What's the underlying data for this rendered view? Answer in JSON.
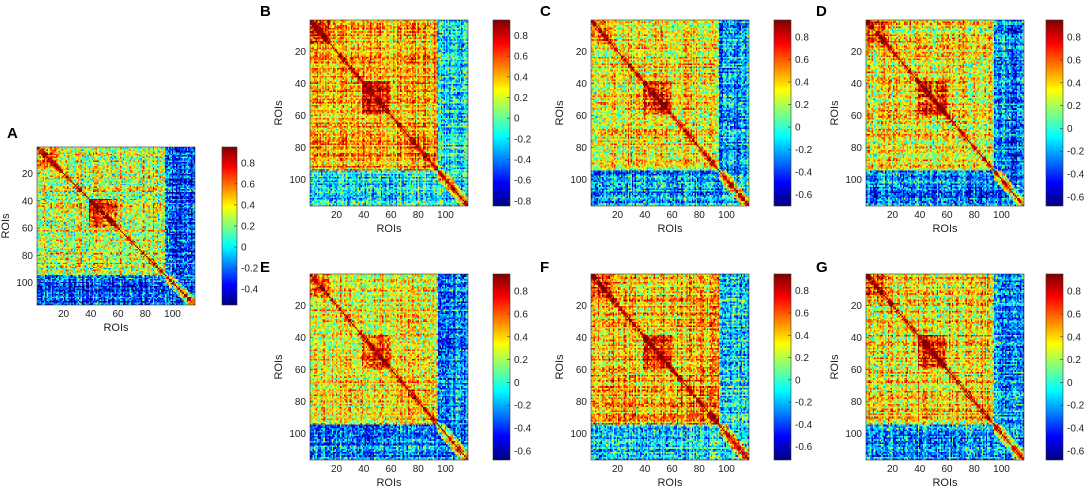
{
  "chart_data": [
    {
      "panel": "A",
      "type": "heatmap",
      "xlabel": "ROIs",
      "ylabel": "ROIs",
      "x_ticks": [
        20,
        40,
        60,
        80,
        100
      ],
      "y_ticks": [
        20,
        40,
        60,
        80,
        100
      ],
      "x_tick_labels": [
        "20",
        "40",
        "60",
        "80",
        "100"
      ],
      "y_tick_labels": [
        "20",
        "40",
        "60",
        "80",
        "100"
      ],
      "n_rois": 116,
      "colorbar": {
        "range": [
          -0.55,
          0.95
        ],
        "ticks": [
          -0.4,
          -0.2,
          0,
          0.2,
          0.4,
          0.6,
          0.8
        ],
        "tick_labels": [
          "-0.4",
          "-0.2",
          "0",
          "0.2",
          "0.4",
          "0.6",
          "0.8"
        ]
      }
    },
    {
      "panel": "B",
      "type": "heatmap",
      "xlabel": "ROIs",
      "ylabel": "ROIs",
      "x_ticks": [
        20,
        40,
        60,
        80,
        100
      ],
      "y_ticks": [
        20,
        40,
        60,
        80,
        100
      ],
      "x_tick_labels": [
        "20",
        "40",
        "60",
        "80",
        "100"
      ],
      "y_tick_labels": [
        "20",
        "40",
        "60",
        "80",
        "100"
      ],
      "n_rois": 116,
      "colorbar": {
        "range": [
          -0.85,
          0.95
        ],
        "ticks": [
          -0.8,
          -0.6,
          -0.4,
          -0.2,
          0,
          0.2,
          0.4,
          0.6,
          0.8
        ],
        "tick_labels": [
          "-0.8",
          "-0.6",
          "-0.4",
          "-0.2",
          "0",
          "0.2",
          "0.4",
          "0.6",
          "0.8"
        ]
      }
    },
    {
      "panel": "C",
      "type": "heatmap",
      "xlabel": "ROIs",
      "ylabel": "ROIs",
      "x_ticks": [
        20,
        40,
        60,
        80,
        100
      ],
      "y_ticks": [
        20,
        40,
        60,
        80,
        100
      ],
      "x_tick_labels": [
        "20",
        "40",
        "60",
        "80",
        "100"
      ],
      "y_tick_labels": [
        "20",
        "40",
        "60",
        "80",
        "100"
      ],
      "n_rois": 116,
      "colorbar": {
        "range": [
          -0.7,
          0.95
        ],
        "ticks": [
          -0.6,
          -0.4,
          -0.2,
          0,
          0.2,
          0.4,
          0.6,
          0.8
        ],
        "tick_labels": [
          "-0.6",
          "-0.4",
          "-0.2",
          "0",
          "0.2",
          "0.4",
          "0.6",
          "0.8"
        ]
      }
    },
    {
      "panel": "D",
      "type": "heatmap",
      "xlabel": "ROIs",
      "ylabel": "ROIs",
      "x_ticks": [
        20,
        40,
        60,
        80,
        100
      ],
      "y_ticks": [
        20,
        40,
        60,
        80,
        100
      ],
      "x_tick_labels": [
        "20",
        "40",
        "60",
        "80",
        "100"
      ],
      "y_tick_labels": [
        "20",
        "40",
        "60",
        "80",
        "100"
      ],
      "n_rois": 116,
      "colorbar": {
        "range": [
          -0.68,
          0.95
        ],
        "ticks": [
          -0.6,
          -0.4,
          -0.2,
          0,
          0.2,
          0.4,
          0.6,
          0.8
        ],
        "tick_labels": [
          "-0.6",
          "-0.4",
          "-0.2",
          "0",
          "0.2",
          "0.4",
          "0.6",
          "0.8"
        ]
      }
    },
    {
      "panel": "E",
      "type": "heatmap",
      "xlabel": "ROIs",
      "ylabel": "ROIs",
      "x_ticks": [
        20,
        40,
        60,
        80,
        100
      ],
      "y_ticks": [
        20,
        40,
        60,
        80,
        100
      ],
      "x_tick_labels": [
        "20",
        "40",
        "60",
        "80",
        "100"
      ],
      "y_tick_labels": [
        "20",
        "40",
        "60",
        "80",
        "100"
      ],
      "n_rois": 116,
      "colorbar": {
        "range": [
          -0.68,
          0.95
        ],
        "ticks": [
          -0.6,
          -0.4,
          -0.2,
          0,
          0.2,
          0.4,
          0.6,
          0.8
        ],
        "tick_labels": [
          "-0.6",
          "-0.4",
          "-0.2",
          "0",
          "0.2",
          "0.4",
          "0.6",
          "0.8"
        ]
      }
    },
    {
      "panel": "F",
      "type": "heatmap",
      "xlabel": "ROIs",
      "ylabel": "ROIs",
      "x_ticks": [
        20,
        40,
        60,
        80,
        100
      ],
      "y_ticks": [
        20,
        40,
        60,
        80,
        100
      ],
      "x_tick_labels": [
        "20",
        "40",
        "60",
        "80",
        "100"
      ],
      "y_tick_labels": [
        "20",
        "40",
        "60",
        "80",
        "100"
      ],
      "n_rois": 116,
      "colorbar": {
        "range": [
          -0.72,
          0.95
        ],
        "ticks": [
          -0.6,
          -0.4,
          -0.2,
          0,
          0.2,
          0.4,
          0.6,
          0.8
        ],
        "tick_labels": [
          "-0.6",
          "-0.4",
          "-0.2",
          "0",
          "0.2",
          "0.4",
          "0.6",
          "0.8"
        ]
      }
    },
    {
      "panel": "G",
      "type": "heatmap",
      "xlabel": "ROIs",
      "ylabel": "ROIs",
      "x_ticks": [
        20,
        40,
        60,
        80,
        100
      ],
      "y_ticks": [
        20,
        40,
        60,
        80,
        100
      ],
      "x_tick_labels": [
        "20",
        "40",
        "60",
        "80",
        "100"
      ],
      "y_tick_labels": [
        "20",
        "40",
        "60",
        "80",
        "100"
      ],
      "n_rois": 116,
      "colorbar": {
        "range": [
          -0.68,
          0.95
        ],
        "ticks": [
          -0.6,
          -0.4,
          -0.2,
          0,
          0.2,
          0.4,
          0.6,
          0.8
        ],
        "tick_labels": [
          "-0.6",
          "-0.4",
          "-0.2",
          "0",
          "0.2",
          "0.4",
          "0.6",
          "0.8"
        ]
      }
    }
  ]
}
